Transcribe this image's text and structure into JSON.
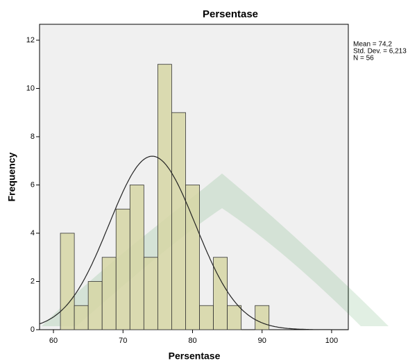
{
  "chart_data": {
    "type": "histogram",
    "title": "Persentase",
    "x_label": "Persentase",
    "y_label": "Frequency",
    "bins": [
      61,
      63,
      65,
      67,
      69,
      71,
      73,
      75,
      77,
      79,
      81,
      83,
      85,
      87,
      89,
      91
    ],
    "values": [
      4,
      1,
      2,
      3,
      5,
      6,
      3,
      11,
      9,
      6,
      1,
      3,
      1,
      0,
      1
    ],
    "color": "#d6d6a4",
    "xlim": [
      58,
      102.4
    ],
    "xticks": [
      60,
      70,
      80,
      90,
      100
    ],
    "ylim": [
      0,
      12.66
    ],
    "yticks": [
      0,
      2,
      4,
      6,
      8,
      10,
      12
    ],
    "curve": {
      "mean": 74.2,
      "sd": 6.213,
      "n": 56
    },
    "stats": [
      "Mean = 74,2",
      "Std. Dev. = 6,213",
      "N = 56"
    ]
  }
}
